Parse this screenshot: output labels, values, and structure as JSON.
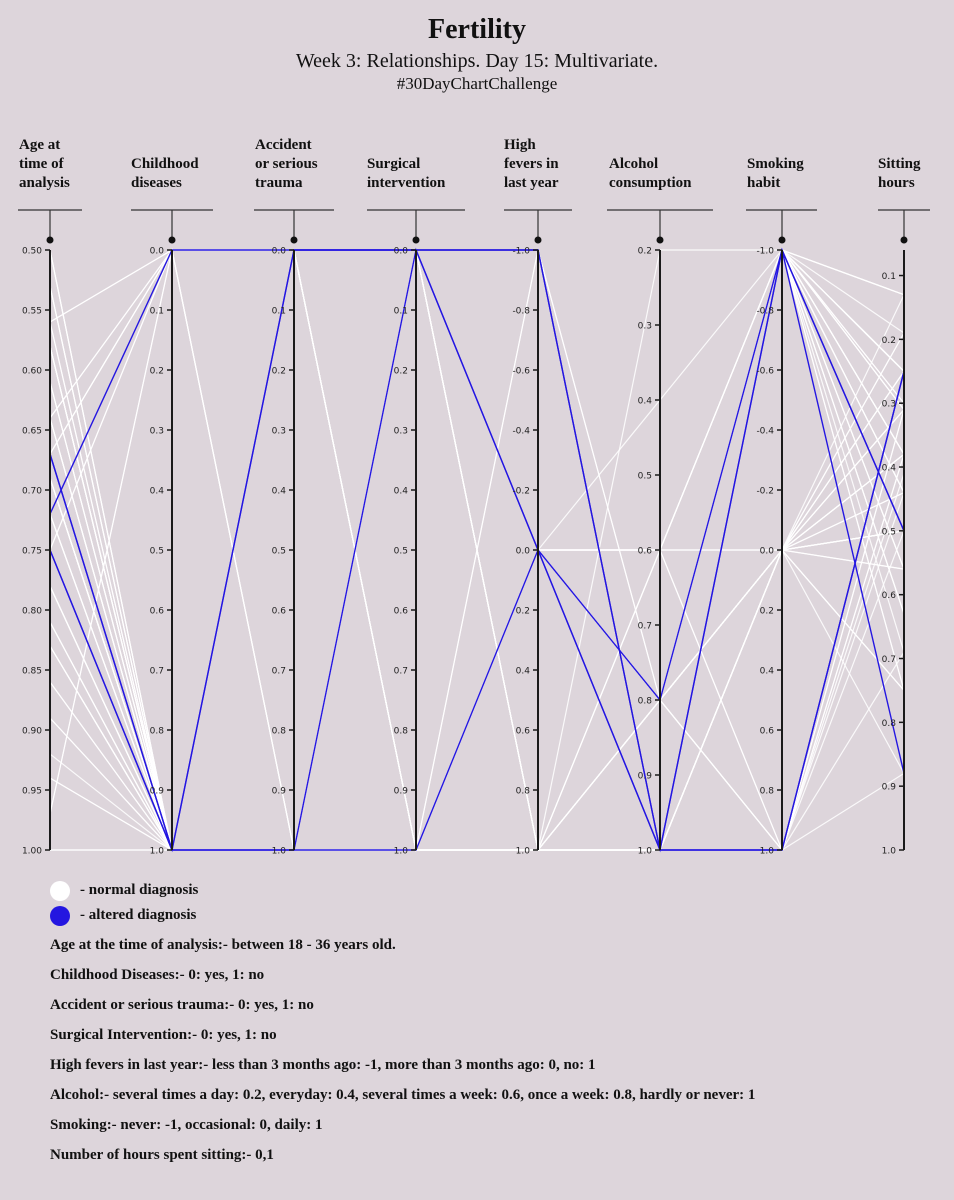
{
  "header": {
    "title": "Fertility",
    "subtitle": "Week 3: Relationships. Day 15: Multivariate.",
    "hashtag": "#30DayChartChallenge"
  },
  "legend": [
    {
      "label": "- normal diagnosis",
      "color": "#ffffff"
    },
    {
      "label": "- altered diagnosis",
      "color": "#2416e0"
    }
  ],
  "notes": [
    "Age at the time of analysis:- between 18 - 36 years old.",
    "Childhood Diseases:- 0: yes, 1: no",
    "Accident or serious trauma:- 0: yes, 1: no",
    "Surgical Intervention:- 0: yes, 1: no",
    "High fevers in last year:- less than 3 months ago: -1, more than 3 months ago: 0, no: 1",
    "Alcohol:- several times a day: 0.2, everyday: 0.4, several times a week: 0.6, once a week: 0.8, hardly or never: 1",
    "Smoking:- never: -1, occasional: 0, daily: 1",
    "Number of hours spent sitting:- 0,1"
  ],
  "chart_data": {
    "type": "parallel-coordinates",
    "title": "Fertility",
    "colors": {
      "normal": "#ffffff",
      "altered": "#2416e0",
      "axis": "#1a1a1a"
    },
    "axes": [
      {
        "key": "age",
        "title": [
          "Age at",
          "time of",
          "analysis"
        ],
        "domain": [
          0.5,
          1.0
        ],
        "ticks": [
          "0.50",
          "0.55",
          "0.60",
          "0.65",
          "0.70",
          "0.75",
          "0.80",
          "0.85",
          "0.90",
          "0.95",
          "1.00"
        ]
      },
      {
        "key": "childhood",
        "title": [
          "Childhood",
          "diseases"
        ],
        "domain": [
          0,
          1
        ],
        "ticks": [
          "0.0",
          "0.1",
          "0.2",
          "0.3",
          "0.4",
          "0.5",
          "0.6",
          "0.7",
          "0.8",
          "0.9",
          "1.0"
        ]
      },
      {
        "key": "trauma",
        "title": [
          "Accident",
          "or serious",
          "trauma"
        ],
        "domain": [
          0,
          1
        ],
        "ticks": [
          "0.0",
          "0.1",
          "0.2",
          "0.3",
          "0.4",
          "0.5",
          "0.6",
          "0.7",
          "0.8",
          "0.9",
          "1.0"
        ]
      },
      {
        "key": "surgical",
        "title": [
          "Surgical",
          "intervention"
        ],
        "domain": [
          0,
          1
        ],
        "ticks": [
          "0.0",
          "0.1",
          "0.2",
          "0.3",
          "0.4",
          "0.5",
          "0.6",
          "0.7",
          "0.8",
          "0.9",
          "1.0"
        ]
      },
      {
        "key": "fevers",
        "title": [
          "High",
          "fevers in",
          "last year"
        ],
        "domain": [
          -1,
          1
        ],
        "ticks": [
          "-1.0",
          "-0.8",
          "-0.6",
          "-0.4",
          "-0.2",
          "0.0",
          "0.2",
          "0.4",
          "0.6",
          "0.8",
          "1.0"
        ]
      },
      {
        "key": "alcohol",
        "title": [
          "Alcohol",
          "consumption"
        ],
        "domain": [
          0.2,
          1
        ],
        "ticks": [
          "0.2",
          "0.3",
          "0.4",
          "0.5",
          "0.6",
          "0.7",
          "0.8",
          "0.9",
          "1.0"
        ]
      },
      {
        "key": "smoking",
        "title": [
          "Smoking",
          "habit"
        ],
        "domain": [
          -1,
          1
        ],
        "ticks": [
          "-1.0",
          "-0.8",
          "-0.6",
          "-0.4",
          "-0.2",
          "0.0",
          "0.2",
          "0.4",
          "0.6",
          "0.8",
          "1.0"
        ]
      },
      {
        "key": "sitting",
        "title": [
          "Sitting",
          "hours"
        ],
        "domain": [
          0.06,
          1.0
        ],
        "ticks": [
          "0.1",
          "0.2",
          "0.3",
          "0.4",
          "0.5",
          "0.6",
          "0.7",
          "0.8",
          "0.9",
          "1.0"
        ]
      }
    ],
    "records": [
      {
        "v": [
          0.69,
          1,
          0,
          0,
          0,
          0.8,
          0,
          0.88
        ],
        "d": "N"
      },
      {
        "v": [
          0.94,
          1,
          0,
          1,
          0,
          0.8,
          1,
          0.31
        ],
        "d": "N"
      },
      {
        "v": [
          0.5,
          1,
          0,
          0,
          0,
          1,
          -1,
          0.5
        ],
        "d": "N"
      },
      {
        "v": [
          0.75,
          0,
          1,
          1,
          0,
          1,
          -1,
          0.38
        ],
        "d": "N"
      },
      {
        "v": [
          0.67,
          1,
          1,
          0,
          0,
          0.8,
          -1,
          0.5
        ],
        "d": "A"
      },
      {
        "v": [
          0.67,
          1,
          0,
          1,
          0,
          0.8,
          0,
          0.5
        ],
        "d": "N"
      },
      {
        "v": [
          0.67,
          0,
          0,
          0,
          -1,
          0.8,
          -1,
          0.44
        ],
        "d": "N"
      },
      {
        "v": [
          1,
          1,
          1,
          1,
          0,
          0.6,
          -1,
          0.38
        ],
        "d": "N"
      },
      {
        "v": [
          0.64,
          0,
          0,
          1,
          0,
          0.8,
          -1,
          0.25
        ],
        "d": "N"
      },
      {
        "v": [
          0.61,
          1,
          0,
          0,
          0,
          1,
          -1,
          0.25
        ],
        "d": "N"
      },
      {
        "v": [
          0.67,
          1,
          1,
          1,
          0,
          0.8,
          -1,
          0.31
        ],
        "d": "N"
      },
      {
        "v": [
          0.78,
          1,
          0,
          1,
          1,
          0.6,
          0,
          0.13
        ],
        "d": "N"
      },
      {
        "v": [
          0.75,
          1,
          1,
          1,
          0,
          1,
          1,
          0.25
        ],
        "d": "A"
      },
      {
        "v": [
          0.81,
          1,
          0,
          0,
          1,
          1,
          0,
          0.38
        ],
        "d": "N"
      },
      {
        "v": [
          0.94,
          1,
          1,
          1,
          1,
          1,
          0,
          0.25
        ],
        "d": "N"
      },
      {
        "v": [
          0.81,
          1,
          1,
          0,
          0,
          1,
          -1,
          0.38
        ],
        "d": "N"
      },
      {
        "v": [
          0.64,
          0,
          0,
          0,
          1,
          1,
          0,
          0.5
        ],
        "d": "N"
      },
      {
        "v": [
          0.69,
          1,
          0,
          1,
          1,
          1,
          -1,
          0.25
        ],
        "d": "N"
      },
      {
        "v": [
          0.75,
          1,
          1,
          1,
          1,
          0.8,
          0,
          0.38
        ],
        "d": "N"
      },
      {
        "v": [
          0.67,
          1,
          0,
          0,
          1,
          0.8,
          0,
          0.25
        ],
        "d": "N"
      },
      {
        "v": [
          0.67,
          0,
          0,
          0,
          0,
          0.8,
          -1,
          0.75
        ],
        "d": "N"
      },
      {
        "v": [
          0.75,
          1,
          0,
          0,
          0,
          0.6,
          0,
          0.5
        ],
        "d": "N"
      },
      {
        "v": [
          0.67,
          1,
          1,
          0,
          1,
          1,
          -1,
          0.13
        ],
        "d": "N"
      },
      {
        "v": [
          0.69,
          1,
          0,
          0,
          1,
          1,
          -1,
          0.38
        ],
        "d": "N"
      },
      {
        "v": [
          0.56,
          0,
          0,
          0,
          0,
          1,
          0,
          0.44
        ],
        "d": "N"
      },
      {
        "v": [
          0.53,
          1,
          1,
          0,
          0,
          0.8,
          -1,
          0.63
        ],
        "d": "N"
      },
      {
        "v": [
          0.78,
          1,
          1,
          1,
          0,
          0.8,
          0,
          0.75
        ],
        "d": "N"
      },
      {
        "v": [
          0.92,
          1,
          0,
          1,
          1,
          0.2,
          -1,
          0.38
        ],
        "d": "N"
      },
      {
        "v": [
          0.83,
          1,
          1,
          1,
          0,
          0.8,
          -1,
          0.19
        ],
        "d": "N"
      },
      {
        "v": [
          0.86,
          1,
          0,
          1,
          0,
          1,
          0,
          0.31
        ],
        "d": "N"
      },
      {
        "v": [
          0.64,
          1,
          0,
          0,
          1,
          0.8,
          1,
          0.25
        ],
        "d": "N"
      },
      {
        "v": [
          0.89,
          1,
          1,
          0,
          0,
          0.8,
          0,
          0.5
        ],
        "d": "N"
      },
      {
        "v": [
          0.72,
          1,
          0,
          0,
          0,
          1,
          -1,
          0.56
        ],
        "d": "N"
      },
      {
        "v": [
          0.58,
          1,
          1,
          1,
          0,
          0.6,
          -1,
          0.75
        ],
        "d": "N"
      },
      {
        "v": [
          0.56,
          0,
          1,
          0,
          0,
          1,
          -1,
          0.31
        ],
        "d": "N"
      },
      {
        "v": [
          0.69,
          1,
          1,
          1,
          1,
          1,
          -1,
          0.63
        ],
        "d": "N"
      },
      {
        "v": [
          0.83,
          1,
          0,
          1,
          0,
          0.4,
          -1,
          0.56
        ],
        "d": "N"
      },
      {
        "v": [
          0.53,
          1,
          0,
          1,
          0,
          0.6,
          -1,
          0.88
        ],
        "d": "N"
      },
      {
        "v": [
          0.75,
          1,
          0,
          0,
          0,
          1,
          1,
          0.5
        ],
        "d": "N"
      },
      {
        "v": [
          0.72,
          0,
          0,
          0,
          0,
          1,
          -1,
          0.88
        ],
        "d": "A"
      },
      {
        "v": [
          0.67,
          1,
          1,
          1,
          -1,
          0.8,
          1,
          0.44
        ],
        "d": "N"
      },
      {
        "v": [
          0.75,
          1,
          0,
          1,
          0,
          1,
          -1,
          0.25
        ],
        "d": "N"
      },
      {
        "v": [
          0.69,
          1,
          0,
          0,
          1,
          1,
          0,
          0.19
        ],
        "d": "N"
      },
      {
        "v": [
          0.83,
          1,
          1,
          1,
          1,
          0.6,
          1,
          0.31
        ],
        "d": "N"
      },
      {
        "v": [
          0.64,
          1,
          0,
          0,
          1,
          1,
          0,
          0.75
        ],
        "d": "N"
      },
      {
        "v": [
          0.58,
          1,
          1,
          0,
          1,
          1,
          -1,
          0.25
        ],
        "d": "N"
      },
      {
        "v": [
          0.97,
          0,
          0,
          1,
          0,
          0.8,
          1,
          0.41
        ],
        "d": "N"
      },
      {
        "v": [
          0.56,
          1,
          1,
          1,
          1,
          0.6,
          -1,
          0.44
        ],
        "d": "N"
      },
      {
        "v": [
          0.5,
          1,
          1,
          1,
          1,
          1,
          -1,
          0.56
        ],
        "d": "N"
      },
      {
        "v": [
          0.75,
          0,
          1,
          0,
          1,
          1,
          0,
          0.5
        ],
        "d": "N"
      },
      {
        "v": [
          0.61,
          1,
          0,
          1,
          0,
          0.8,
          0,
          0.38
        ],
        "d": "N"
      },
      {
        "v": [
          0.89,
          1,
          0,
          0,
          1,
          1,
          -1,
          0.3
        ],
        "d": "N"
      },
      {
        "v": [
          0.69,
          1,
          1,
          1,
          0,
          1,
          -1,
          0.44
        ],
        "d": "N"
      },
      {
        "v": [
          0.72,
          1,
          0,
          1,
          1,
          0.8,
          0,
          0.56
        ],
        "d": "N"
      },
      {
        "v": [
          0.64,
          1,
          0,
          0,
          0,
          1,
          1,
          0.69
        ],
        "d": "N"
      },
      {
        "v": [
          0.58,
          1,
          1,
          1,
          1,
          1,
          -1,
          0.31
        ],
        "d": "N"
      },
      {
        "v": [
          0.75,
          1,
          0,
          0,
          -1,
          1,
          1,
          0.25
        ],
        "d": "A"
      },
      {
        "v": [
          0.67,
          1,
          0,
          0,
          -1,
          1,
          -1,
          0.5
        ],
        "d": "A"
      },
      {
        "v": [
          0.53,
          1,
          1,
          1,
          0,
          1,
          -1,
          0.63
        ],
        "d": "N"
      },
      {
        "v": [
          0.83,
          1,
          0,
          1,
          0,
          1,
          1,
          0.88
        ],
        "d": "N"
      },
      {
        "v": [
          0.97,
          0,
          1,
          0,
          0,
          1,
          -1,
          0.25
        ],
        "d": "N"
      },
      {
        "v": [
          1,
          1,
          0,
          1,
          0,
          1,
          0,
          0.19
        ],
        "d": "N"
      },
      {
        "v": [
          0.72,
          1,
          0,
          0,
          0,
          0.8,
          -1,
          0.5
        ],
        "d": "N"
      },
      {
        "v": [
          0.69,
          1,
          1,
          1,
          1,
          1,
          0,
          0.31
        ],
        "d": "N"
      },
      {
        "v": [
          0.78,
          1,
          0,
          1,
          0,
          0.6,
          -1,
          0.25
        ],
        "d": "N"
      },
      {
        "v": [
          0.67,
          1,
          0,
          1,
          1,
          0.8,
          0,
          0.38
        ],
        "d": "N"
      },
      {
        "v": [
          0.83,
          1,
          0,
          0,
          0,
          1,
          0,
          0.31
        ],
        "d": "N"
      },
      {
        "v": [
          0.86,
          1,
          1,
          0,
          0,
          0.6,
          -1,
          0.13
        ],
        "d": "N"
      },
      {
        "v": [
          0.78,
          1,
          0,
          0,
          1,
          1,
          1,
          0.38
        ],
        "d": "N"
      },
      {
        "v": [
          0.58,
          1,
          0,
          1,
          -1,
          1,
          -1,
          0.5
        ],
        "d": "N"
      },
      {
        "v": [
          0.58,
          1,
          0,
          1,
          0,
          0.8,
          0,
          0.25
        ],
        "d": "N"
      },
      {
        "v": [
          0.78,
          1,
          0,
          1,
          1,
          1,
          0,
          0.44
        ],
        "d": "N"
      },
      {
        "v": [
          0.81,
          1,
          1,
          1,
          1,
          1,
          -1,
          0.3
        ],
        "d": "N"
      },
      {
        "v": [
          0.61,
          1,
          0,
          1,
          1,
          1,
          0,
          0.75
        ],
        "d": "N"
      },
      {
        "v": [
          0.67,
          0,
          0,
          0,
          0,
          1,
          -1,
          0.13
        ],
        "d": "N"
      },
      {
        "v": [
          0.64,
          1,
          1,
          1,
          0,
          1,
          0,
          0.56
        ],
        "d": "N"
      },
      {
        "v": [
          0.5,
          1,
          0,
          0,
          0,
          0.8,
          -1,
          0.44
        ],
        "d": "N"
      },
      {
        "v": [
          0.69,
          1,
          1,
          0,
          1,
          1,
          -1,
          0.25
        ],
        "d": "N"
      },
      {
        "v": [
          0.72,
          1,
          0,
          1,
          0,
          0.6,
          1,
          0.38
        ],
        "d": "N"
      },
      {
        "v": [
          0.56,
          1,
          1,
          1,
          1,
          0.8,
          -1,
          0.69
        ],
        "d": "N"
      }
    ]
  }
}
